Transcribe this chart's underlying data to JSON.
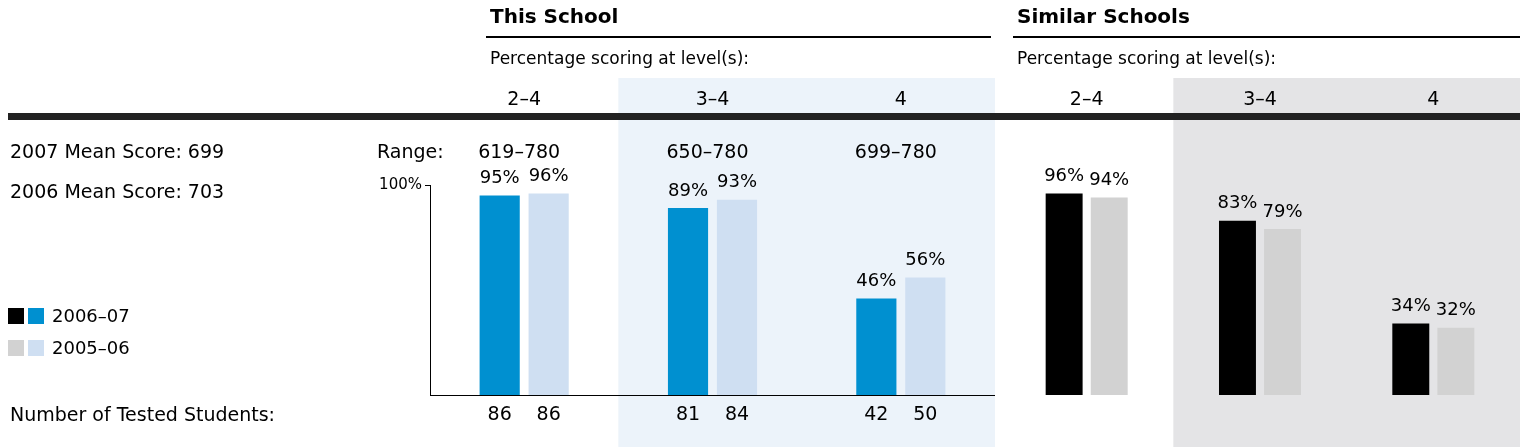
{
  "chart_data": [
    {
      "type": "bar",
      "title": "This School",
      "subtitle": "Percentage scoring at level(s):",
      "categories": [
        "2–4",
        "3–4",
        "4"
      ],
      "series": [
        {
          "name": "2006–07",
          "color": "#0090d0",
          "values": [
            95,
            89,
            46
          ],
          "value_labels": [
            "95%",
            "89%",
            "46%"
          ]
        },
        {
          "name": "2005–06",
          "color": "#cfdff2",
          "values": [
            96,
            93,
            56
          ],
          "value_labels": [
            "96%",
            "93%",
            "56%"
          ]
        }
      ],
      "ylim": [
        0,
        100
      ],
      "yticks": [
        {
          "value": 100,
          "label": "100%"
        }
      ],
      "grid": false,
      "legend": "left",
      "bands": [
        {
          "axis": "x",
          "from": "3–4",
          "to": "4",
          "color": "#ecf3fa"
        }
      ],
      "annotations": [
        "2007 Mean Score: 699",
        "2006 Mean Score: 703",
        "Range:",
        "Number of Tested Students:",
        "619–780",
        "650–780",
        "699–780",
        "86",
        "86",
        "81",
        "84",
        "42",
        "50"
      ]
    },
    {
      "type": "bar",
      "title": "Similar Schools",
      "subtitle": "Percentage scoring at level(s):",
      "categories": [
        "2–4",
        "3–4",
        "4"
      ],
      "series": [
        {
          "color": "#000000",
          "values": [
            96,
            83,
            34
          ],
          "value_labels": [
            "96%",
            "83%",
            "34%"
          ]
        },
        {
          "color": "#d2d2d2",
          "values": [
            94,
            79,
            32
          ],
          "value_labels": [
            "94%",
            "79%",
            "32%"
          ]
        }
      ],
      "tick_labels": "x",
      "grid": false,
      "bands": [
        {
          "axis": "x",
          "from": "3–4",
          "to": "4",
          "color": "#e4e4e6"
        }
      ]
    }
  ]
}
